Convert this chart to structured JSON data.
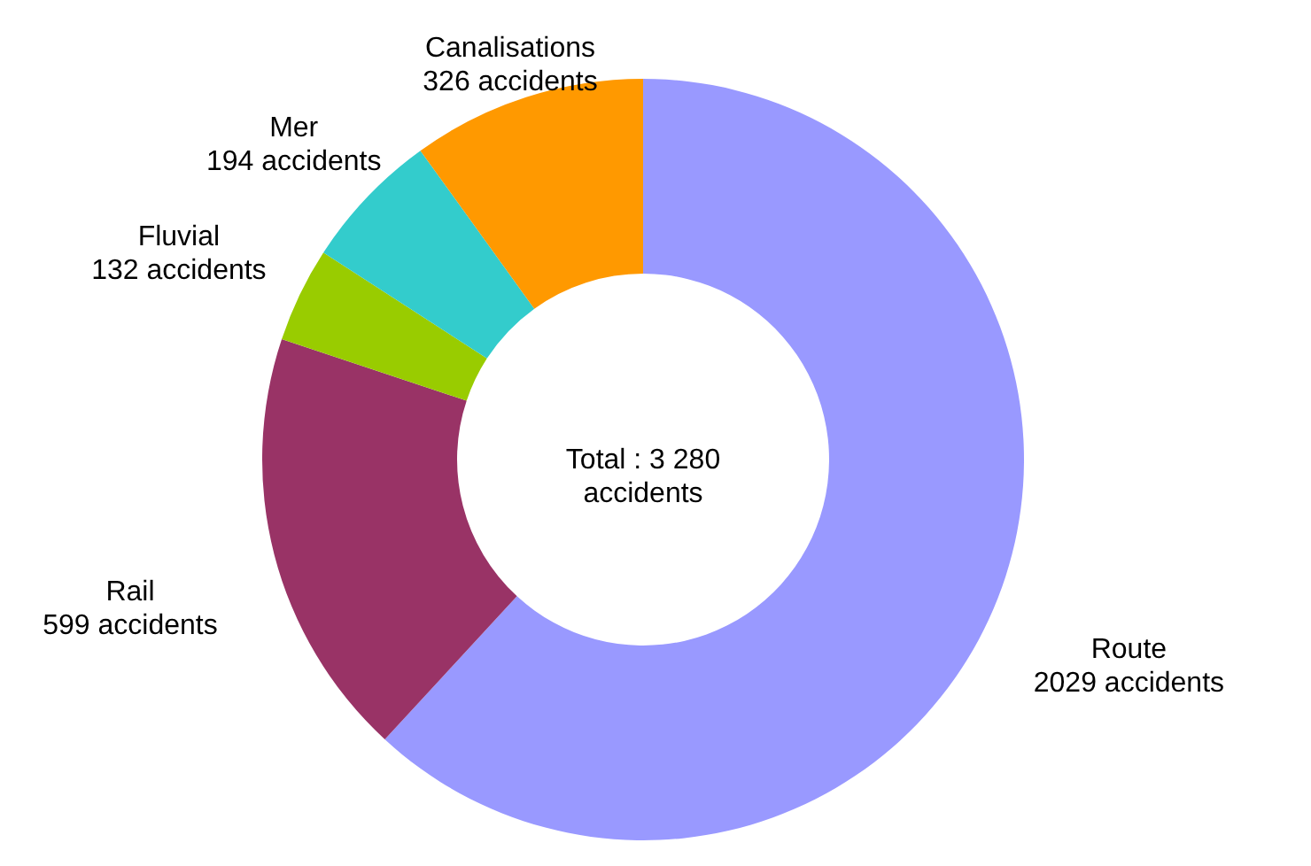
{
  "chart_data": {
    "type": "donut",
    "categories": [
      "Route",
      "Rail",
      "Fluvial",
      "Mer",
      "Canalisations"
    ],
    "values": [
      2029,
      599,
      132,
      194,
      326
    ],
    "colors": [
      "#9999ff",
      "#993366",
      "#99cc00",
      "#33cccc",
      "#ff9900"
    ],
    "value_labels": [
      "2029 accidents",
      "599 accidents",
      "132 accidents",
      "194 accidents",
      "326 accidents"
    ],
    "annotations": [
      "Total : 3 280\naccidents"
    ]
  }
}
